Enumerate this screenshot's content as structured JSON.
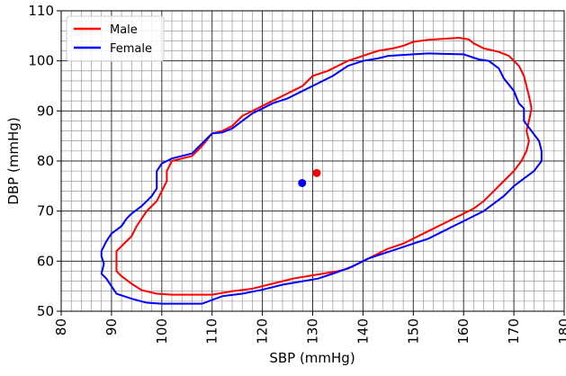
{
  "chart_data": {
    "type": "contour",
    "xlabel": "SBP (mmHg)",
    "ylabel": "DBP (mmHg)",
    "xlim": [
      80,
      180
    ],
    "ylim": [
      50,
      110
    ],
    "xticks": [
      80,
      90,
      100,
      110,
      120,
      130,
      140,
      150,
      160,
      170,
      180
    ],
    "yticks": [
      50,
      60,
      70,
      80,
      90,
      100,
      110
    ],
    "grid": true,
    "minor_grid": true,
    "legend": "upper left",
    "series": [
      {
        "name": "Male",
        "color": "#ff0000",
        "x": [
          91,
          91,
          92,
          94,
          95,
          97,
          99,
          100,
          101,
          101,
          102,
          104,
          106,
          108,
          110,
          112,
          114,
          116,
          118,
          120,
          122,
          125,
          128,
          130,
          133,
          135,
          137,
          140,
          143,
          146,
          148,
          150,
          153,
          156,
          159,
          161,
          162,
          164,
          167,
          169,
          171,
          172,
          172.5,
          173,
          173.5,
          173,
          172.5,
          173,
          172.5,
          171.5,
          170,
          168,
          166,
          164,
          162,
          159,
          156,
          153,
          150,
          148,
          145,
          142,
          139,
          137,
          135,
          132,
          129,
          126,
          122,
          118,
          114,
          110,
          106,
          102,
          99,
          96,
          94,
          92,
          91,
          91
        ],
        "values": [
          60,
          62,
          63,
          65,
          67,
          70,
          72,
          74,
          76,
          78,
          80,
          80.5,
          81,
          83,
          85.5,
          86,
          87,
          89,
          90,
          91,
          92,
          93.5,
          95,
          97,
          98,
          99,
          100,
          101,
          102,
          102.5,
          103,
          103.8,
          104.2,
          104.4,
          104.6,
          104.3,
          103.5,
          102.5,
          101.8,
          101,
          99,
          97,
          95,
          93,
          90.5,
          88,
          86,
          84,
          82,
          80,
          78,
          76,
          74,
          72,
          70.5,
          69,
          67.5,
          66,
          64.5,
          63.5,
          62.5,
          61,
          59.5,
          58.5,
          58,
          57.5,
          57,
          56.5,
          55.5,
          54.5,
          54,
          53.3,
          53.3,
          53.3,
          53.5,
          54.2,
          55.5,
          57,
          58,
          60
        ],
        "center_x": 130.8,
        "center_y": 77.6
      },
      {
        "name": "Female",
        "color": "#0000ff",
        "x": [
          88,
          89,
          90,
          92,
          93,
          94,
          96,
          98,
          99,
          99,
          99,
          100,
          102,
          104,
          106,
          108,
          110,
          112,
          114,
          116,
          118,
          120,
          122,
          125,
          128,
          131,
          134,
          137,
          140,
          143,
          145,
          150,
          153,
          156,
          160,
          163,
          165,
          167,
          168,
          170,
          171,
          172,
          172,
          173.5,
          175,
          175.5,
          175.5,
          174,
          172,
          170,
          168,
          166,
          164,
          162,
          159,
          156,
          153,
          150,
          147,
          144,
          141,
          138,
          136,
          134,
          131,
          128,
          124,
          120,
          116,
          112,
          108,
          104,
          100,
          97,
          94,
          91,
          90,
          89,
          88,
          88.5,
          88,
          88
        ],
        "values": [
          62,
          64,
          65.5,
          67,
          68.5,
          69.5,
          71,
          73,
          74.5,
          76.5,
          78,
          79.5,
          80.5,
          81,
          81.5,
          83.5,
          85.5,
          85.7,
          86.5,
          88,
          89.5,
          90.5,
          91.5,
          92.5,
          94,
          95.5,
          97,
          99,
          100,
          100.5,
          101,
          101.3,
          101.5,
          101.4,
          101.3,
          100.3,
          100,
          98.5,
          96.5,
          94,
          91.5,
          90.5,
          88,
          86,
          84,
          82,
          80,
          78,
          76.5,
          75,
          73,
          71.5,
          70,
          69,
          67.5,
          66,
          64.5,
          63.5,
          62.5,
          61.5,
          60.5,
          59,
          58.2,
          57.5,
          56.5,
          56,
          55.3,
          54.3,
          53.5,
          53,
          51.5,
          51.5,
          51.5,
          51.7,
          52.5,
          53.5,
          55,
          56.5,
          57.5,
          59.5,
          61,
          62
        ],
        "center_x": 127.9,
        "center_y": 75.6
      }
    ]
  }
}
